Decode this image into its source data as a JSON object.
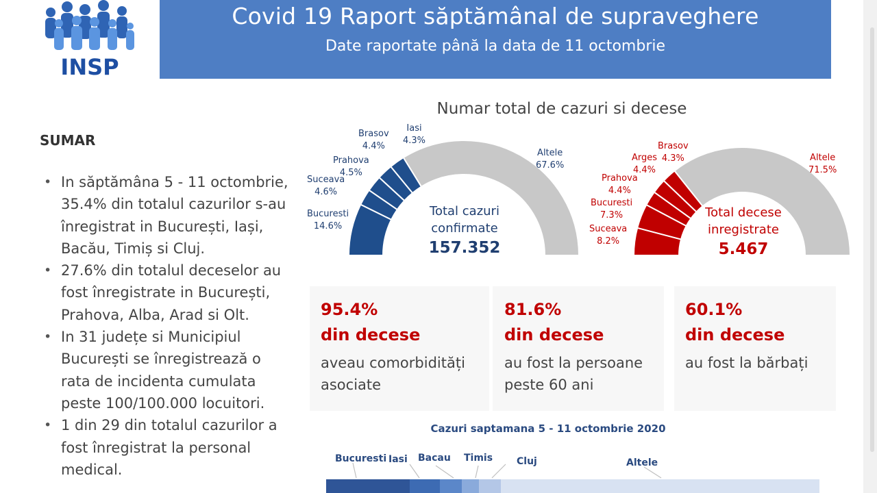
{
  "header": {
    "logo_text": "INSP",
    "title": "Covid 19 Raport săptămânal de supraveghere",
    "subtitle": "Date raportate până la data de 11 octombrie"
  },
  "sumar": {
    "title": "SUMAR",
    "bullets": [
      "In săptămâna 5 - 11 octombrie, 35.4% din totalul cazurilor s-au înregistrat in București, Iași, Bacău, Timiș si Cluj.",
      "27.6% din totalul deceselor au fost înregistrate in București, Prahova, Alba, Arad si Olt.",
      "In 31 județe si Municipiul București se înregistrează o rata de incidenta cumulata peste 100/100.000 locuitori.",
      "1 din 29 din totalul cazurilor a fost înregistrat la personal medical."
    ]
  },
  "charts_title": "Numar total de cazuri si decese",
  "chart_data": [
    {
      "type": "pie",
      "variant": "half-donut",
      "total_label": "Total cazuri confirmate",
      "total_value": "157.352",
      "slices": [
        {
          "name": "Bucuresti",
          "value": 14.6,
          "label": "14.6%",
          "color": "#1f4e8c"
        },
        {
          "name": "Suceava",
          "value": 4.6,
          "label": "4.6%",
          "color": "#1f4e8c"
        },
        {
          "name": "Prahova",
          "value": 4.5,
          "label": "4.5%",
          "color": "#1f4e8c"
        },
        {
          "name": "Brasov",
          "value": 4.4,
          "label": "4.4%",
          "color": "#1f4e8c"
        },
        {
          "name": "Iasi",
          "value": 4.3,
          "label": "4.3%",
          "color": "#1f4e8c"
        },
        {
          "name": "Altele",
          "value": 67.6,
          "label": "67.6%",
          "color": "#c8c8c8"
        }
      ]
    },
    {
      "type": "pie",
      "variant": "half-donut",
      "total_label": "Total decese inregistrate",
      "total_value": "5.467",
      "slices": [
        {
          "name": "Suceava",
          "value": 8.2,
          "label": "8.2%",
          "color": "#c00000"
        },
        {
          "name": "Bucuresti",
          "value": 7.3,
          "label": "7.3%",
          "color": "#c00000"
        },
        {
          "name": "Prahova",
          "value": 4.4,
          "label": "4.4%",
          "color": "#c00000"
        },
        {
          "name": "Arges",
          "value": 4.4,
          "label": "4.4%",
          "color": "#c00000"
        },
        {
          "name": "Brasov",
          "value": 4.3,
          "label": "4.3%",
          "color": "#c00000"
        },
        {
          "name": "Altele",
          "value": 71.5,
          "label": "71.5%",
          "color": "#c8c8c8"
        }
      ]
    },
    {
      "type": "bar",
      "variant": "stacked-horizontal",
      "title": "Cazuri saptamana 5 - 11 octombrie 2020",
      "categories": [
        "Bucuresti",
        "Iasi",
        "Bacau",
        "Timis",
        "Cluj",
        "Altele"
      ],
      "values": [
        17.0,
        6.0,
        4.5,
        3.5,
        4.4,
        64.6
      ],
      "colors": [
        "#2f5597",
        "#3d6bb3",
        "#5b87c9",
        "#8aaadb",
        "#b4c7e7",
        "#d8e2f2"
      ]
    }
  ],
  "stats": [
    {
      "pct": "95.4%",
      "sub": "din decese",
      "desc": "aveau comorbidități asociate"
    },
    {
      "pct": "81.6%",
      "sub": "din decese",
      "desc": "au fost la persoane peste 60 ani"
    },
    {
      "pct": "60.1%",
      "sub": "din decese",
      "desc": "au fost la bărbați"
    }
  ]
}
